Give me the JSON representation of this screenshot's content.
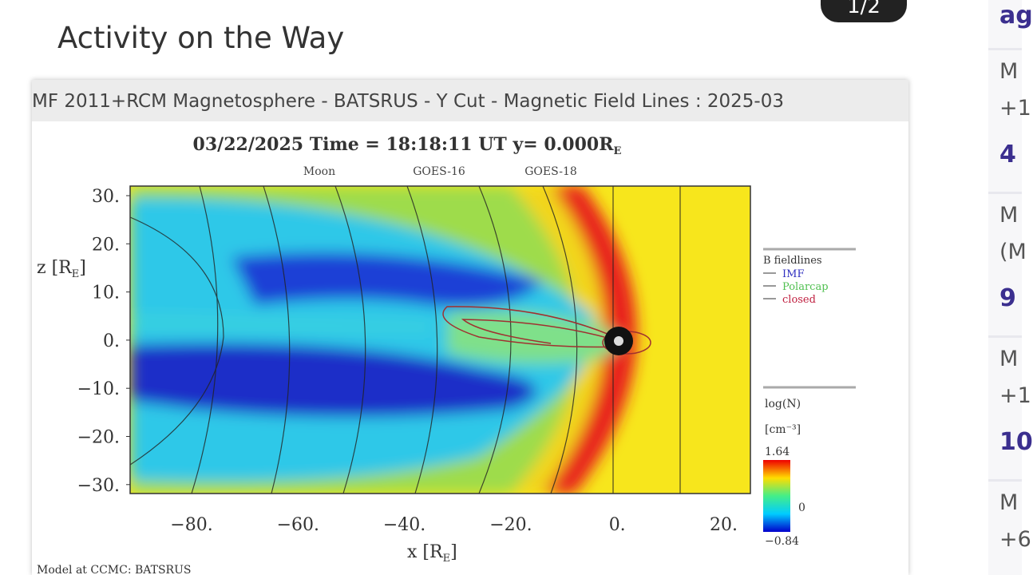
{
  "badge": "1/2",
  "heading": "Activity on the Way",
  "figure": {
    "header": "MF 2011+RCM Magnetosphere - BATSRUS - Y Cut - Magnetic Field Lines : 2025-03",
    "time_text": "03/22/2025 Time = 18:18:11 UT y= 0.000R",
    "time_sub": "E",
    "markers": [
      "Moon",
      "GOES-16",
      "GOES-18"
    ],
    "y_axis_label": "z [R",
    "x_axis_label": "x [R",
    "axis_sub": "E",
    "axis_close": "]",
    "y_ticks": [
      "30.",
      "20.",
      "10.",
      "0.",
      "−10.",
      "−20.",
      "−30."
    ],
    "x_ticks": [
      "−80.",
      "−60.",
      "−40.",
      "−20.",
      "0.",
      "20."
    ],
    "fieldline_legend": {
      "title": "B fieldlines",
      "items": [
        "IMF",
        "Polarcap",
        "closed"
      ]
    },
    "colorbar": {
      "title": "log(N)",
      "unit": "[cm⁻³]",
      "max": "1.64",
      "mid": "0",
      "min": "−0.84"
    },
    "credit": "Model at CCMC: BATSRUS"
  },
  "sidebar": {
    "top": "ag",
    "cards": [
      {
        "lines": [
          "M",
          "+1"
        ],
        "value": "4"
      },
      {
        "lines": [
          "M",
          "(M"
        ],
        "value": "9"
      },
      {
        "lines": [
          "M",
          "+1"
        ],
        "value": "10"
      },
      {
        "lines": [
          "M",
          "+6"
        ]
      }
    ]
  }
}
